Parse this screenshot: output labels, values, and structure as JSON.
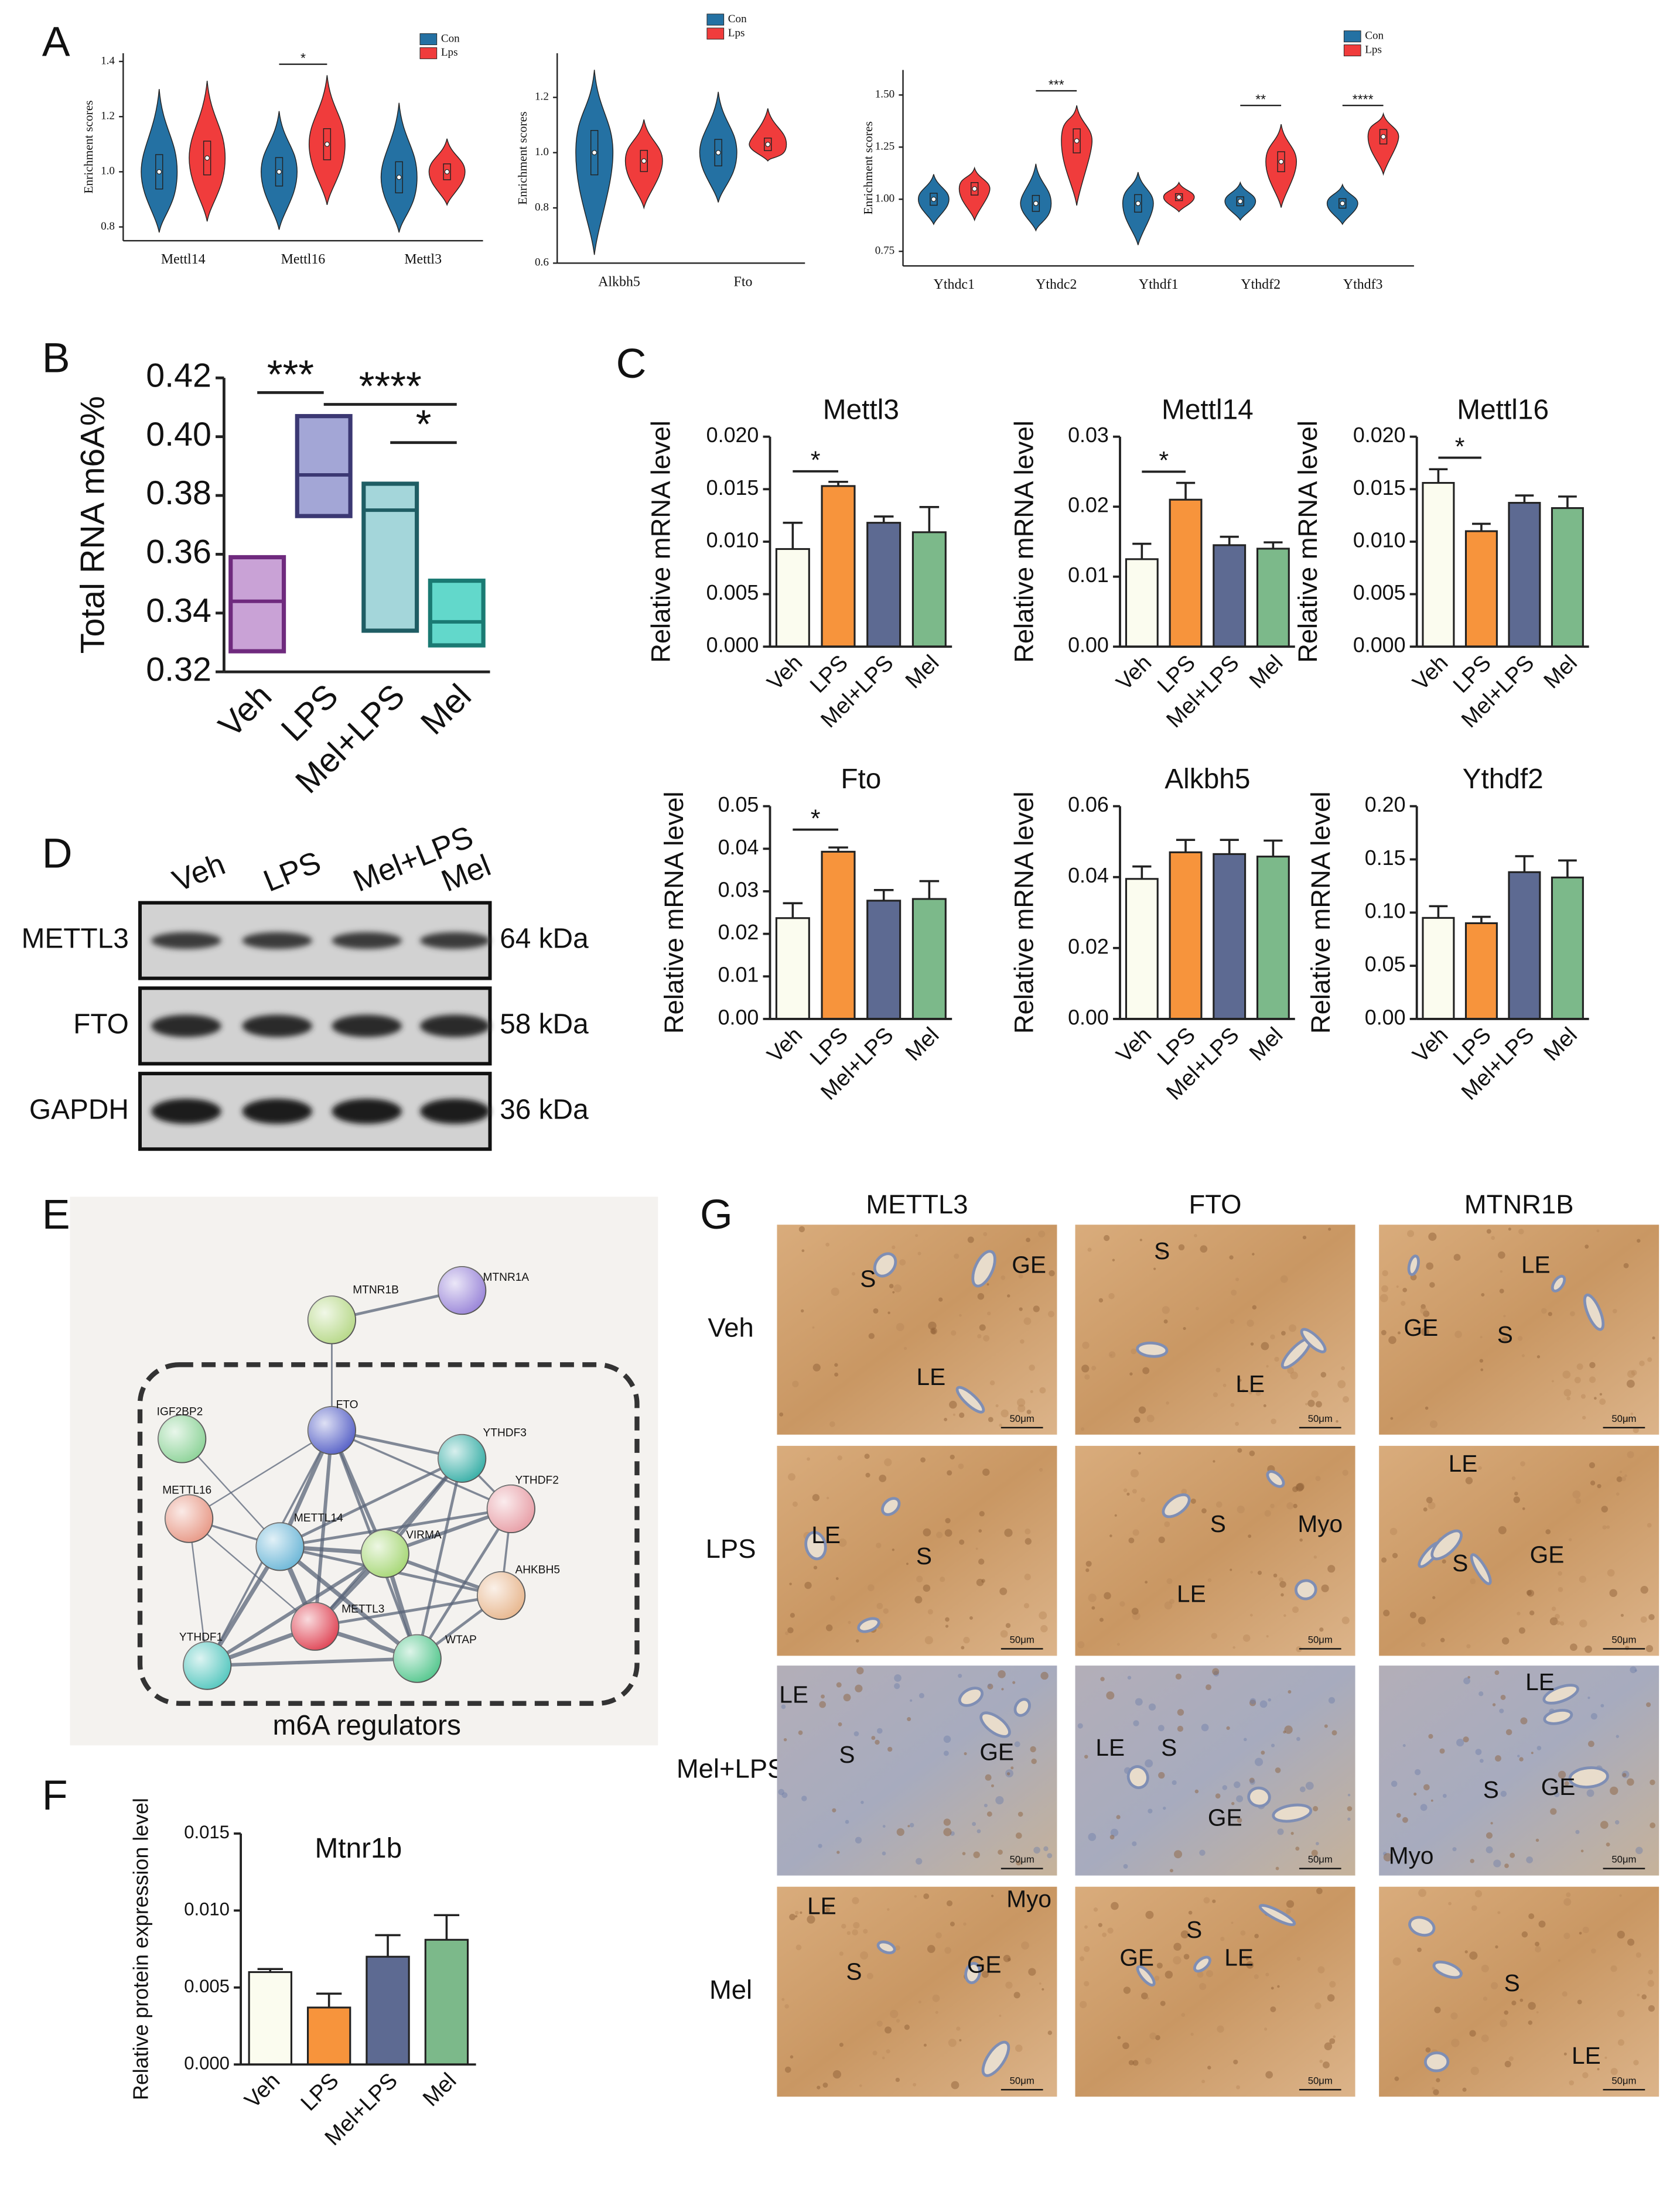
{
  "panel_labels": [
    "A",
    "B",
    "C",
    "D",
    "E",
    "F",
    "G"
  ],
  "chart_data": [
    {
      "type": "violin",
      "y_label": "Enrichment scores",
      "categories": [
        "Mettl14",
        "Mettl16",
        "Mettl3"
      ],
      "series": [
        {
          "name": "Con",
          "color": "#2471a3",
          "values": [
            1.0,
            1.0,
            0.98
          ],
          "lows": [
            0.78,
            0.79,
            0.78
          ],
          "highs": [
            1.3,
            1.22,
            1.25
          ]
        },
        {
          "name": "Lps",
          "color": "#f03c3c",
          "values": [
            1.05,
            1.1,
            1.0
          ],
          "lows": [
            0.82,
            0.88,
            0.88
          ],
          "highs": [
            1.33,
            1.35,
            1.12
          ]
        }
      ],
      "ylim": [
        0.75,
        1.43
      ],
      "yticks": [
        0.8,
        {
          "value": 1,
          "label": "1.0"
        },
        1.2,
        1.4
      ],
      "annotations": [
        "*"
      ]
    },
    {
      "type": "violin",
      "y_label": "Enrichment scores",
      "categories": [
        "Alkbh5",
        "Fto"
      ],
      "series": [
        {
          "name": "Con",
          "color": "#2471a3",
          "values": [
            1.0,
            1.0
          ],
          "lows": [
            0.63,
            0.82
          ],
          "highs": [
            1.3,
            1.22
          ]
        },
        {
          "name": "Lps",
          "color": "#f03c3c",
          "values": [
            0.97,
            1.03
          ],
          "lows": [
            0.8,
            0.97
          ],
          "highs": [
            1.12,
            1.16
          ]
        }
      ],
      "ylim": [
        0.6,
        1.36
      ],
      "yticks": [
        0.6,
        0.8,
        {
          "value": 1,
          "label": "1.0"
        },
        1.2
      ]
    },
    {
      "type": "violin",
      "y_label": "Enrichment scores",
      "categories": [
        "Ythdc1",
        "Ythdc2",
        "Ythdf1",
        "Ythdf2",
        "Ythdf3"
      ],
      "series": [
        {
          "name": "Con",
          "color": "#2471a3",
          "values": [
            1.0,
            0.98,
            0.98,
            0.99,
            0.98
          ],
          "lows": [
            0.88,
            0.85,
            0.78,
            0.9,
            0.88
          ],
          "highs": [
            1.12,
            1.17,
            1.13,
            1.08,
            1.07
          ]
        },
        {
          "name": "Lps",
          "color": "#f03c3c",
          "values": [
            1.05,
            1.28,
            1.01,
            1.18,
            1.3
          ],
          "lows": [
            0.9,
            0.97,
            0.94,
            0.96,
            1.12
          ],
          "highs": [
            1.15,
            1.45,
            1.08,
            1.36,
            1.41
          ]
        }
      ],
      "ylim": [
        0.68,
        1.62
      ],
      "yticks": [
        0.75,
        {
          "value": 1,
          "label": "1.00"
        },
        1.25,
        {
          "value": 1.5,
          "label": "1.50"
        }
      ],
      "annotations": [
        "***",
        "**",
        "****"
      ]
    },
    {
      "type": "floating_bar",
      "y_label": "Total RNA m6A%",
      "categories": [
        "Veh",
        "LPS",
        "Mel+LPS",
        "Mel"
      ],
      "values": [
        0.344,
        0.387,
        0.375,
        0.337
      ],
      "lows": [
        0.327,
        0.373,
        0.334,
        0.329
      ],
      "highs": [
        0.359,
        0.407,
        0.384,
        0.351
      ],
      "colors": [
        "#c9a2d6",
        "#a3a6d6",
        "#a4d6da",
        "#62d8cb"
      ],
      "edge_colors": [
        "#6f2a7e",
        "#3b3873",
        "#1f5d64",
        "#1a7a73"
      ],
      "ylim": [
        0.32,
        0.42
      ],
      "yticks": [
        0.32,
        0.34,
        0.36,
        0.38,
        {
          "value": 0.4,
          "label": "0.40"
        },
        0.42
      ],
      "annotations": [
        "***",
        "****",
        "*"
      ]
    },
    {
      "type": "bar",
      "title": "Mettl3",
      "y_label": "Relative mRNA level",
      "categories": [
        "Veh",
        "LPS",
        "Mel+LPS",
        "Mel"
      ],
      "values": [
        0.0093,
        0.0153,
        0.0118,
        0.0109
      ],
      "errors": [
        0.0025,
        0.0004,
        0.0006,
        0.0024
      ],
      "colors": [
        "#fbfcef",
        "#f7943c",
        "#5d6a92",
        "#7cb98a"
      ],
      "ylim": [
        0,
        0.02
      ],
      "yticks": [
        {
          "value": 0,
          "label": "0.000"
        },
        0.005,
        {
          "value": 0.01,
          "label": "0.010"
        },
        0.015,
        {
          "value": 0.02,
          "label": "0.020"
        }
      ],
      "annotations": [
        "*"
      ]
    },
    {
      "type": "bar",
      "title": "Mettl14",
      "y_label": "Relative mRNA level",
      "categories": [
        "Veh",
        "LPS",
        "Mel+LPS",
        "Mel"
      ],
      "values": [
        0.0125,
        0.021,
        0.0145,
        0.014
      ],
      "errors": [
        0.0022,
        0.0024,
        0.0012,
        0.0009
      ],
      "colors": [
        "#fbfcef",
        "#f7943c",
        "#5d6a92",
        "#7cb98a"
      ],
      "ylim": [
        0,
        0.03
      ],
      "yticks": [
        {
          "value": 0,
          "label": "0.00"
        },
        0.01,
        0.02,
        0.03
      ],
      "annotations": [
        "*"
      ]
    },
    {
      "type": "bar",
      "title": "Mettl16",
      "y_label": "Relative mRNA level",
      "categories": [
        "Veh",
        "LPS",
        "Mel+LPS",
        "Mel"
      ],
      "values": [
        0.0156,
        0.011,
        0.0137,
        0.0132
      ],
      "errors": [
        0.0013,
        0.0007,
        0.0007,
        0.0011
      ],
      "colors": [
        "#fbfcef",
        "#f7943c",
        "#5d6a92",
        "#7cb98a"
      ],
      "ylim": [
        0,
        0.02
      ],
      "yticks": [
        {
          "value": 0,
          "label": "0.000"
        },
        0.005,
        {
          "value": 0.01,
          "label": "0.010"
        },
        0.015,
        {
          "value": 0.02,
          "label": "0.020"
        }
      ],
      "annotations": [
        "*"
      ]
    },
    {
      "type": "bar",
      "title": "Fto",
      "y_label": "Relative mRNA level",
      "categories": [
        "Veh",
        "LPS",
        "Mel+LPS",
        "Mel"
      ],
      "values": [
        0.0237,
        0.0393,
        0.0278,
        0.0282
      ],
      "errors": [
        0.0035,
        0.001,
        0.0025,
        0.0042
      ],
      "colors": [
        "#fbfcef",
        "#f7943c",
        "#5d6a92",
        "#7cb98a"
      ],
      "ylim": [
        0,
        0.05
      ],
      "yticks": [
        {
          "value": 0,
          "label": "0.00"
        },
        0.01,
        0.02,
        0.03,
        0.04,
        0.05
      ],
      "annotations": [
        "*"
      ]
    },
    {
      "type": "bar",
      "title": "Alkbh5",
      "y_label": "Relative mRNA level",
      "categories": [
        "Veh",
        "LPS",
        "Mel+LPS",
        "Mel"
      ],
      "values": [
        0.0395,
        0.047,
        0.0465,
        0.0458
      ],
      "errors": [
        0.0035,
        0.0035,
        0.004,
        0.0045
      ],
      "colors": [
        "#fbfcef",
        "#f7943c",
        "#5d6a92",
        "#7cb98a"
      ],
      "ylim": [
        0,
        0.06
      ],
      "yticks": [
        {
          "value": 0,
          "label": "0.00"
        },
        0.02,
        0.04,
        0.06
      ]
    },
    {
      "type": "bar",
      "title": "Ythdf2",
      "y_label": "Relative mRNA level",
      "categories": [
        "Veh",
        "LPS",
        "Mel+LPS",
        "Mel"
      ],
      "values": [
        0.095,
        0.09,
        0.138,
        0.133
      ],
      "errors": [
        0.011,
        0.006,
        0.015,
        0.016
      ],
      "colors": [
        "#fbfcef",
        "#f7943c",
        "#5d6a92",
        "#7cb98a"
      ],
      "ylim": [
        0,
        0.2
      ],
      "yticks": [
        {
          "value": 0,
          "label": "0.00"
        },
        0.05,
        {
          "value": 0.1,
          "label": "0.10"
        },
        0.15,
        {
          "value": 0.2,
          "label": "0.20"
        }
      ]
    },
    {
      "type": "bar",
      "title": "Mtnr1b",
      "y_label": "Relative protein expression level",
      "categories": [
        "Veh",
        "LPS",
        "Mel+LPS",
        "Mel"
      ],
      "values": [
        0.006,
        0.0037,
        0.007,
        0.0081
      ],
      "errors": [
        0.0002,
        0.0009,
        0.0014,
        0.0016
      ],
      "colors": [
        "#fbfcef",
        "#f7943c",
        "#5d6a92",
        "#7cb98a"
      ],
      "ylim": [
        0,
        0.015
      ],
      "yticks": [
        {
          "value": 0,
          "label": "0.000"
        },
        0.005,
        {
          "value": 0.01,
          "label": "0.010"
        },
        0.015
      ]
    }
  ],
  "blot": {
    "lanes": [
      "Veh",
      "LPS",
      "Mel+LPS",
      "Mel"
    ],
    "rows": [
      {
        "protein": "METTL3",
        "size": "64 kDa"
      },
      {
        "protein": "FTO",
        "size": "58 kDa"
      },
      {
        "protein": "GAPDH",
        "size": "36 kDa"
      }
    ]
  },
  "network": {
    "nodes": [
      "MTNR1B",
      "MTNR1A",
      "IGF2BP2",
      "FTO",
      "YTHDF3",
      "YTHDF2",
      "METTL16",
      "METTL14",
      "VIRMA",
      "AHKBH5",
      "METTL3",
      "WTAP",
      "YTHDF1"
    ],
    "group_label": "m6A regulators"
  },
  "histology": {
    "columns": [
      "METTL3",
      "FTO",
      "MTNR1B"
    ],
    "rows": [
      "Veh",
      "LPS",
      "Mel+LPS",
      "Mel"
    ],
    "cells": [
      [
        [
          "S",
          "GE",
          "LE"
        ],
        [
          "S",
          "LE"
        ],
        [
          "LE",
          "GE",
          "S"
        ]
      ],
      [
        [
          "LE",
          "S"
        ],
        [
          "S",
          "Myo",
          "LE"
        ],
        [
          "LE",
          "S",
          "GE"
        ]
      ],
      [
        [
          "LE",
          "S",
          "GE"
        ],
        [
          "LE",
          "S",
          "GE"
        ],
        [
          "LE",
          "S",
          "GE",
          "Myo"
        ]
      ],
      [
        [
          "LE",
          "S",
          "GE",
          "Myo"
        ],
        [
          "S",
          "GE",
          "LE"
        ],
        [
          "S",
          "LE"
        ]
      ]
    ],
    "scale_bar": "50μm"
  }
}
